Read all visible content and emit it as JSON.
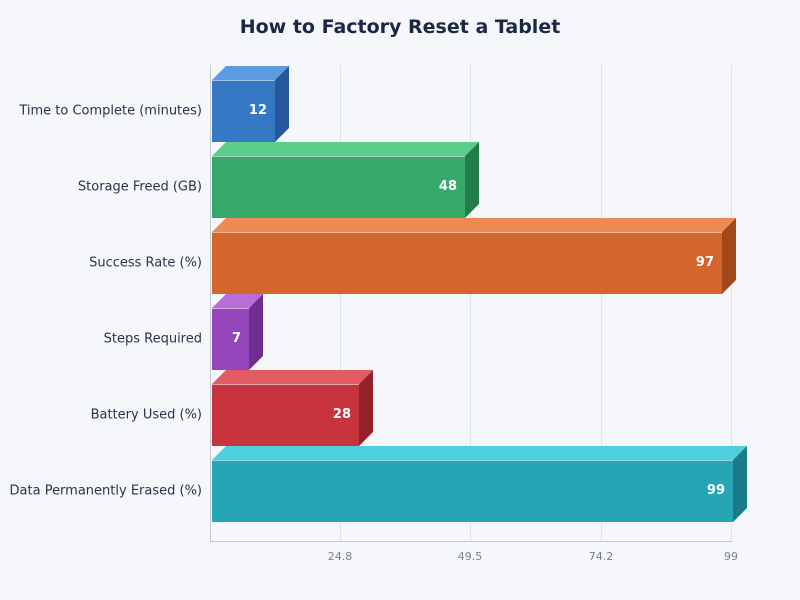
{
  "title": "How to Factory Reset a Tablet",
  "x_ticks": [
    "24.8",
    "49.5",
    "74.2",
    "99"
  ],
  "categories": [
    {
      "label": "Time to Complete (minutes)",
      "value": 12,
      "value_label": "12",
      "front": "#3578c4",
      "top": "#5c9be0",
      "side": "#24589a"
    },
    {
      "label": "Storage Freed (GB)",
      "value": 48,
      "value_label": "48",
      "front": "#36a86a",
      "top": "#5bcf8a",
      "side": "#237d49"
    },
    {
      "label": "Success Rate (%)",
      "value": 97,
      "value_label": "97",
      "front": "#d4652d",
      "top": "#ef8a52",
      "side": "#a3481a"
    },
    {
      "label": "Steps Required",
      "value": 7,
      "value_label": "7",
      "front": "#9646bb",
      "top": "#b96ed8",
      "side": "#6f2e90"
    },
    {
      "label": "Battery Used (%)",
      "value": 28,
      "value_label": "28",
      "front": "#c8343d",
      "top": "#e25a62",
      "side": "#96212a"
    },
    {
      "label": "Data Permanently Erased (%)",
      "value": 99,
      "value_label": "99",
      "front": "#26a5b5",
      "top": "#4ecfdc",
      "side": "#197c88"
    }
  ],
  "chart_data": {
    "type": "bar",
    "orientation": "horizontal",
    "title": "How to Factory Reset a Tablet",
    "categories": [
      "Time to Complete (minutes)",
      "Storage Freed (GB)",
      "Success Rate (%)",
      "Steps Required",
      "Battery Used (%)",
      "Data Permanently Erased (%)"
    ],
    "values": [
      12,
      48,
      97,
      7,
      28,
      99
    ],
    "xlabel": "",
    "ylabel": "",
    "xlim": [
      0,
      99
    ],
    "x_ticks": [
      24.8,
      49.5,
      74.2,
      99
    ],
    "grid": true,
    "legend": null,
    "style": "3d"
  }
}
